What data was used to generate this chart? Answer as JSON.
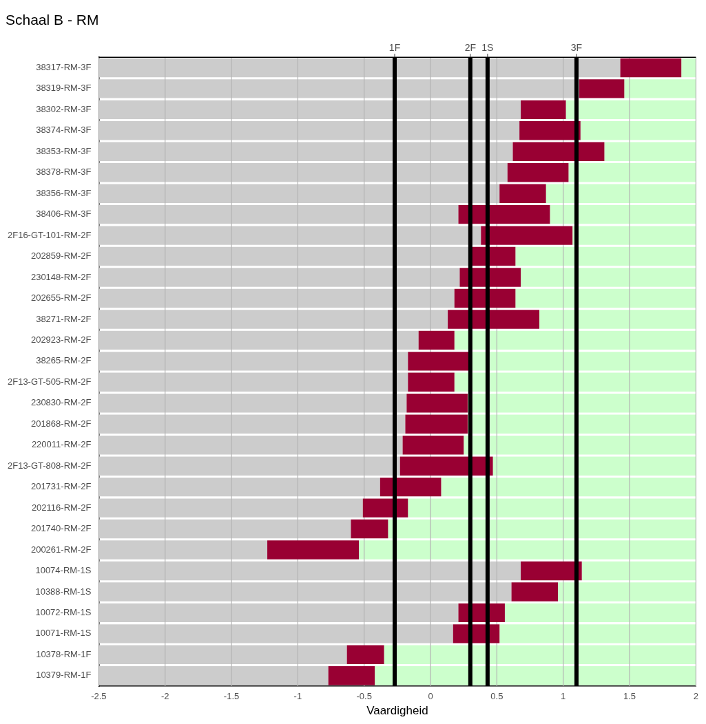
{
  "chart_data": {
    "type": "bar",
    "orientation": "horizontal",
    "title": "Schaal B - RM",
    "xlabel": "Vaardigheid",
    "categories": [
      "38317-RM-3F",
      "38319-RM-3F",
      "38302-RM-3F",
      "38374-RM-3F",
      "38353-RM-3F",
      "38378-RM-3F",
      "38356-RM-3F",
      "38406-RM-3F",
      "2F16-GT-101-RM-2F",
      "202859-RM-2F",
      "230148-RM-2F",
      "202655-RM-2F",
      "38271-RM-2F",
      "202923-RM-2F",
      "38265-RM-2F",
      "2F13-GT-505-RM-2F",
      "230830-RM-2F",
      "201868-RM-2F",
      "220011-RM-2F",
      "2F13-GT-808-RM-2F",
      "201731-RM-2F",
      "202116-RM-2F",
      "201740-RM-2F",
      "200261-RM-2F",
      "10074-RM-1S",
      "10388-RM-1S",
      "10072-RM-1S",
      "10071-RM-1S",
      "10378-RM-1F",
      "10379-RM-1F"
    ],
    "series": [
      {
        "color": "#cccccc",
        "base": [
          -2.5,
          -2.5,
          -2.5,
          -2.5,
          -2.5,
          -2.5,
          -2.5,
          -2.5,
          -2.5,
          -2.5,
          -2.5,
          -2.5,
          -2.5,
          -2.5,
          -2.5,
          -2.5,
          -2.5,
          -2.5,
          -2.5,
          -2.5,
          -2.5,
          -2.5,
          -2.5,
          -2.5,
          -2.5,
          -2.5,
          -2.5,
          -2.5,
          -2.5,
          -2.5
        ],
        "values": [
          3.93,
          3.62,
          3.18,
          3.17,
          3.12,
          3.08,
          3.02,
          2.71,
          2.88,
          2.79,
          2.72,
          2.68,
          2.63,
          2.41,
          2.33,
          2.33,
          2.32,
          2.31,
          2.29,
          2.27,
          2.12,
          1.99,
          1.9,
          1.27,
          3.18,
          3.11,
          2.71,
          2.67,
          1.87,
          1.73
        ]
      },
      {
        "color": "#990033",
        "base": [
          1.43,
          1.12,
          0.68,
          0.67,
          0.62,
          0.58,
          0.52,
          0.21,
          0.38,
          0.29,
          0.22,
          0.18,
          0.13,
          -0.09,
          -0.17,
          -0.17,
          -0.18,
          -0.19,
          -0.21,
          -0.23,
          -0.38,
          -0.51,
          -0.6,
          -1.23,
          0.68,
          0.61,
          0.21,
          0.17,
          -0.63,
          -0.77
        ],
        "values": [
          0.46,
          0.34,
          0.34,
          0.46,
          0.69,
          0.46,
          0.35,
          0.69,
          0.69,
          0.35,
          0.46,
          0.46,
          0.69,
          0.27,
          0.46,
          0.35,
          0.46,
          0.47,
          0.46,
          0.7,
          0.46,
          0.34,
          0.28,
          0.69,
          0.46,
          0.35,
          0.35,
          0.35,
          0.28,
          0.35
        ]
      },
      {
        "color": "#ccffcc",
        "base": [
          1.89,
          1.46,
          1.02,
          1.13,
          1.31,
          1.04,
          0.87,
          0.9,
          1.07,
          0.64,
          0.68,
          0.64,
          0.82,
          0.18,
          0.29,
          0.18,
          0.28,
          0.28,
          0.25,
          0.47,
          0.08,
          -0.17,
          -0.32,
          -0.54,
          1.14,
          0.96,
          0.56,
          0.52,
          -0.35,
          -0.42
        ],
        "values": [
          0.11,
          0.54,
          0.98,
          0.87,
          0.69,
          0.96,
          1.13,
          1.1,
          0.93,
          1.36,
          1.32,
          1.36,
          1.18,
          1.82,
          1.71,
          1.82,
          1.72,
          1.72,
          1.75,
          1.53,
          1.92,
          2.17,
          2.32,
          2.54,
          0.86,
          1.04,
          1.44,
          1.48,
          2.35,
          2.42
        ]
      }
    ],
    "xlim": [
      -2.5,
      2
    ],
    "xticks": [
      -2.5,
      -2,
      -1.5,
      -1,
      -0.5,
      0,
      0.5,
      1,
      1.5,
      2
    ],
    "grid": "x",
    "legend": false,
    "ref_lines": [
      {
        "axis": "x",
        "value": -0.27,
        "label": "1F",
        "color": "#000000"
      },
      {
        "axis": "x",
        "value": 0.3,
        "label": "2F",
        "color": "#000000"
      },
      {
        "axis": "x",
        "value": 0.43,
        "label": "1S",
        "color": "#000000"
      },
      {
        "axis": "x",
        "value": 1.1,
        "label": "3F",
        "color": "#000000"
      }
    ]
  }
}
